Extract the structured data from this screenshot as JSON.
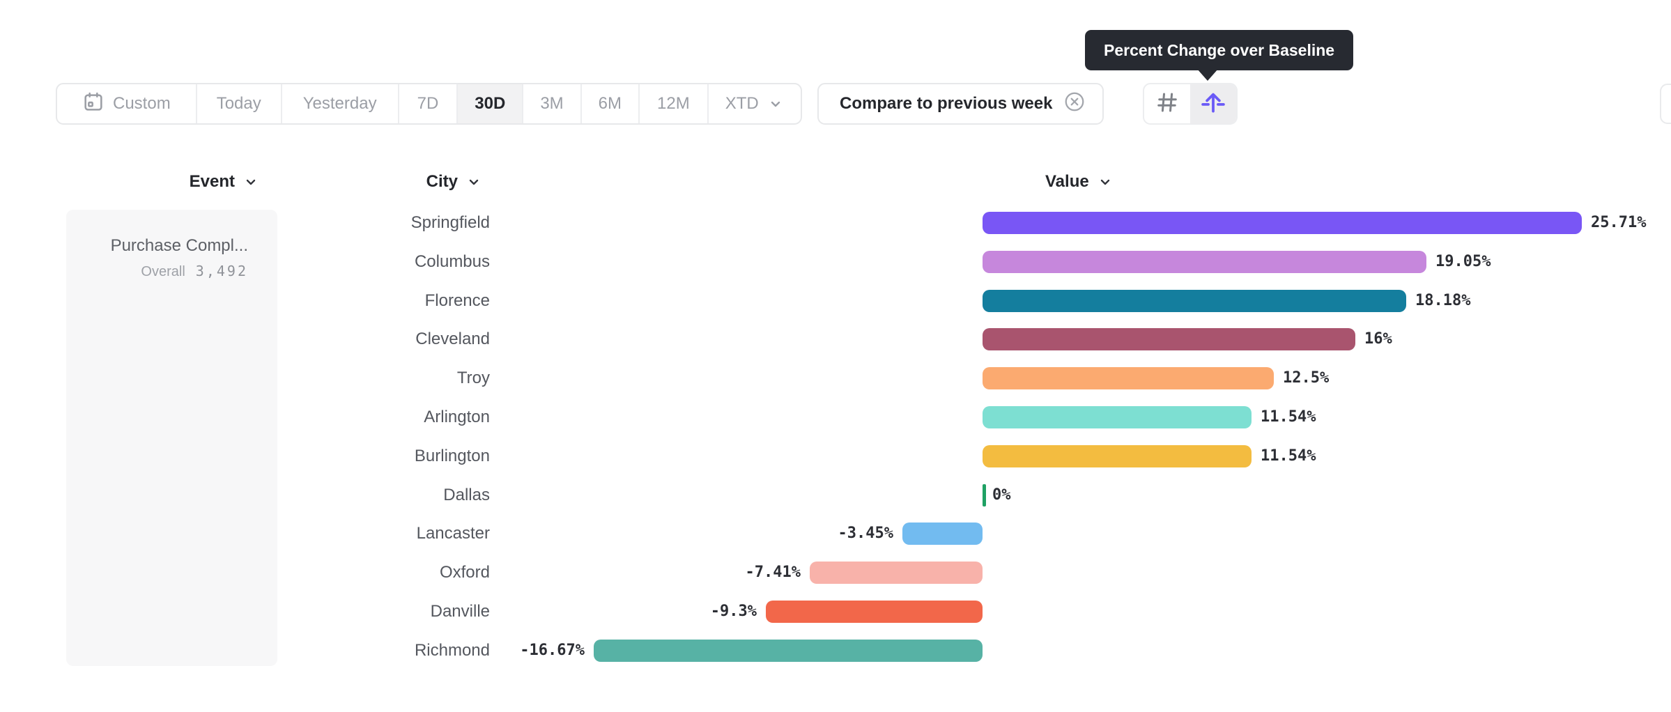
{
  "tooltip": {
    "text": "Percent Change over Baseline"
  },
  "toolbar": {
    "date_ranges": [
      {
        "label": "Custom",
        "icon": "calendar-icon",
        "selected": false,
        "chevron": false
      },
      {
        "label": "Today",
        "selected": false,
        "chevron": false
      },
      {
        "label": "Yesterday",
        "selected": false,
        "chevron": false
      },
      {
        "label": "7D",
        "selected": false,
        "chevron": false
      },
      {
        "label": "30D",
        "selected": true,
        "chevron": false
      },
      {
        "label": "3M",
        "selected": false,
        "chevron": false
      },
      {
        "label": "6M",
        "selected": false,
        "chevron": false
      },
      {
        "label": "12M",
        "selected": false,
        "chevron": false
      },
      {
        "label": "XTD",
        "selected": false,
        "chevron": true
      }
    ],
    "compare": {
      "label": "Compare to previous week",
      "close_icon": "circle-x-icon"
    },
    "view_toggles": [
      {
        "icon": "grid-icon",
        "active": false
      },
      {
        "icon": "baseline-lift-icon",
        "active": true,
        "accent_color": "#6A5AF7"
      }
    ]
  },
  "headers": {
    "event": "Event",
    "city": "City",
    "value": "Value"
  },
  "event_card": {
    "title": "Purchase Compl...",
    "overall_label": "Overall",
    "overall_value": "3,492"
  },
  "chart_data": {
    "type": "bar",
    "orientation": "horizontal",
    "title": "Percent Change over Baseline",
    "value_unit": "percent",
    "baseline": 0,
    "categories": [
      "Springfield",
      "Columbus",
      "Florence",
      "Cleveland",
      "Troy",
      "Arlington",
      "Burlington",
      "Dallas",
      "Lancaster",
      "Oxford",
      "Danville",
      "Richmond"
    ],
    "values": [
      25.71,
      19.05,
      18.18,
      16,
      12.5,
      11.54,
      11.54,
      0,
      -3.45,
      -7.41,
      -9.3,
      -16.67
    ],
    "labels": [
      "25.71%",
      "19.05%",
      "18.18%",
      "16%",
      "12.5%",
      "11.54%",
      "11.54%",
      "0%",
      "-3.45%",
      "-7.41%",
      "-9.3%",
      "-16.67%"
    ],
    "colors": [
      "#7956F5",
      "#C687DC",
      "#147E9E",
      "#A9546E",
      "#FBAA70",
      "#7DDFD2",
      "#F3BC40",
      "#1FA164",
      "#72BBF0",
      "#F8B2AA",
      "#F2674A",
      "#57B2A5"
    ],
    "xlim": [
      -20,
      28
    ],
    "sorted": "descending"
  }
}
